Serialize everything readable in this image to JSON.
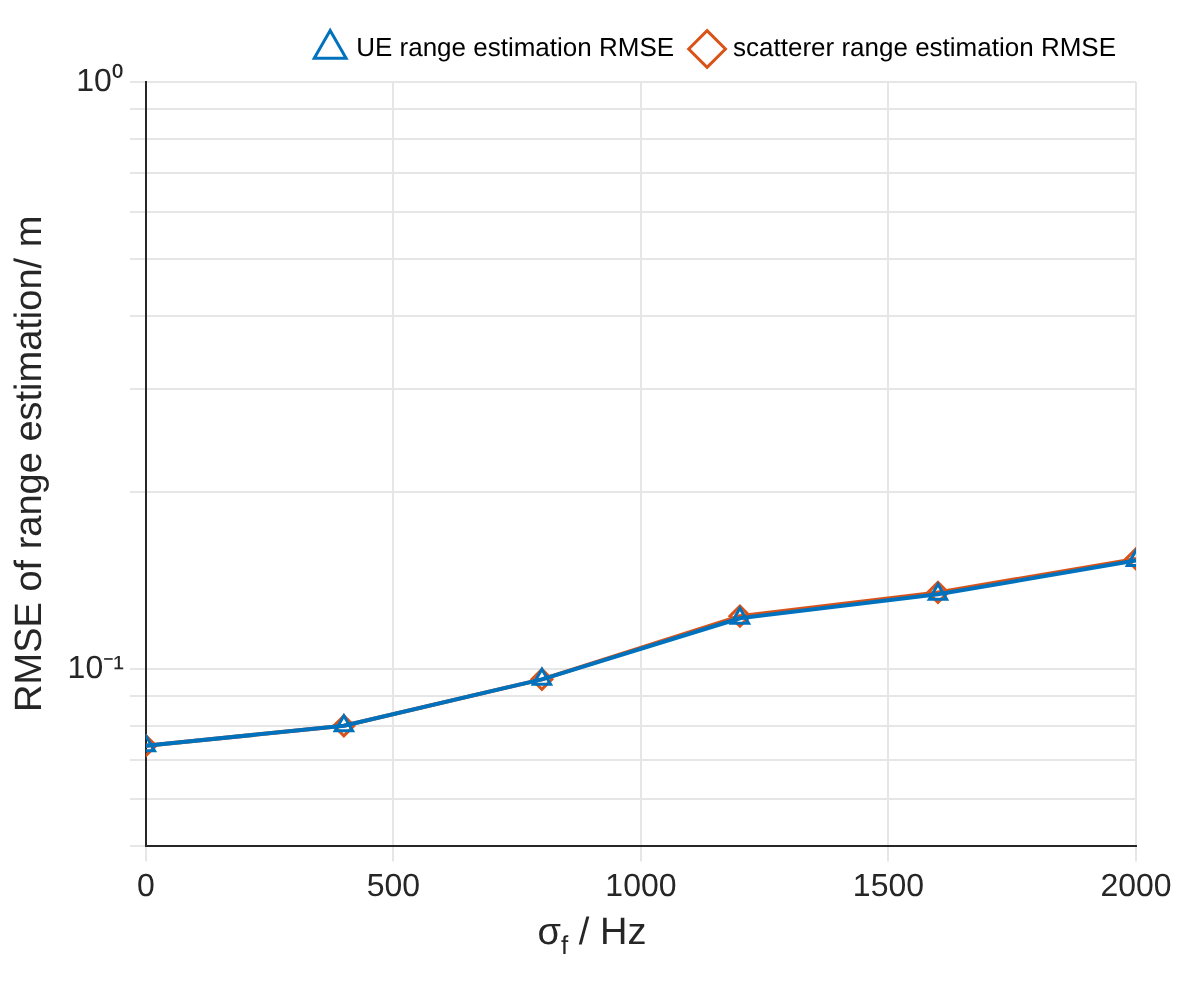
{
  "chart_data": {
    "type": "line",
    "xlabel": "σ$_{f}$ / Hz",
    "ylabel": "RMSE of range estimation/ m",
    "x": [
      0,
      400,
      800,
      1200,
      1600,
      2000
    ],
    "series": [
      {
        "name": "UE range estimation RMSE",
        "color": "#0072bd",
        "marker": "triangle",
        "values": [
          0.074,
          0.08,
          0.096,
          0.122,
          0.134,
          0.153
        ]
      },
      {
        "name": "scatterer range estimation RMSE",
        "color": "#d95319",
        "marker": "diamond",
        "values": [
          0.074,
          0.08,
          0.096,
          0.123,
          0.135,
          0.154
        ]
      }
    ],
    "xlim": [
      0,
      2000
    ],
    "xticks": [
      0,
      500,
      1000,
      1500,
      2000
    ],
    "ylim": [
      0.05,
      1
    ],
    "log": "y",
    "yticks": [
      {
        "value": 0.05,
        "label": null
      },
      {
        "value": 0.06,
        "label": null
      },
      {
        "value": 0.07,
        "label": null
      },
      {
        "value": 0.08,
        "label": null
      },
      {
        "value": 0.09,
        "label": null
      },
      {
        "value": 0.1,
        "label": "10⁻¹"
      },
      {
        "value": 0.2,
        "label": null
      },
      {
        "value": 0.3,
        "label": null
      },
      {
        "value": 0.4,
        "label": null
      },
      {
        "value": 0.5,
        "label": null
      },
      {
        "value": 0.6,
        "label": null
      },
      {
        "value": 0.7,
        "label": null
      },
      {
        "value": 0.8,
        "label": null
      },
      {
        "value": 0.9,
        "label": null
      },
      {
        "value": 1,
        "label": "10⁰"
      }
    ],
    "grid": true,
    "legend": "top right",
    "line_style": "solid"
  }
}
